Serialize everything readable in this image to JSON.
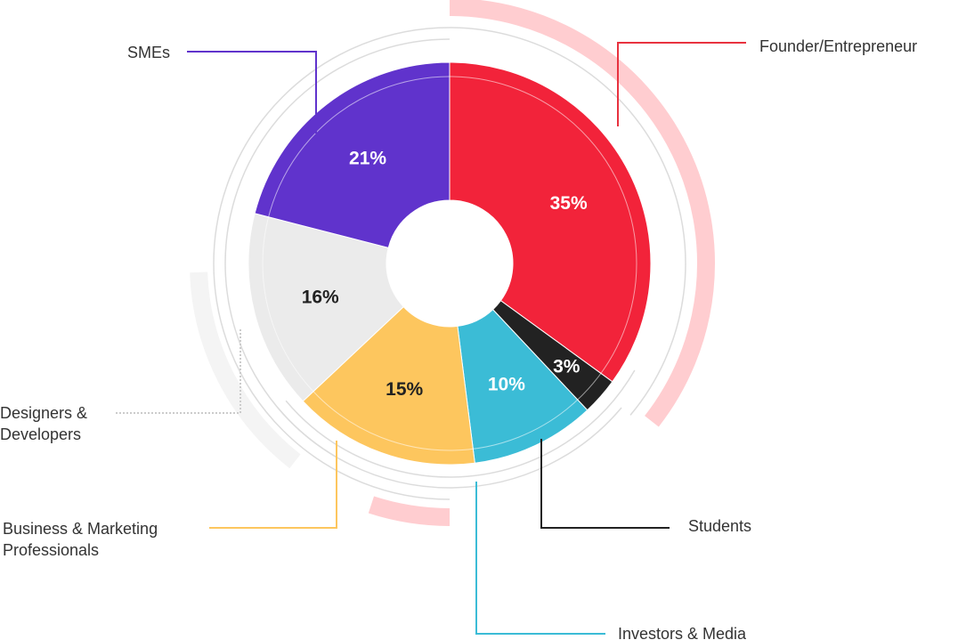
{
  "chart_data": {
    "type": "pie",
    "style": "donut",
    "slices": [
      {
        "label": "Founder/Entrepreneur",
        "value": 35,
        "display": "35%",
        "color": "#F2233A",
        "text_color": "#FFFFFF"
      },
      {
        "label": "Students",
        "value": 3,
        "display": "3%",
        "color": "#222222",
        "text_color": "#FFFFFF"
      },
      {
        "label": "Investors & Media",
        "value": 10,
        "display": "10%",
        "color": "#3BBCD6",
        "text_color": "#FFFFFF"
      },
      {
        "label": "Business & Marketing Professionals",
        "value": 15,
        "display": "15%",
        "color": "#FDC65E",
        "text_color": "#222222"
      },
      {
        "label": "Designers & Developers",
        "value": 16,
        "display": "16%",
        "color": "#EBEBEB",
        "text_color": "#222222"
      },
      {
        "label": "SMEs",
        "value": 21,
        "display": "21%",
        "color": "#6033CC",
        "text_color": "#FFFFFF"
      }
    ],
    "legend": {
      "founder": [
        "Founder/Entrepreneur"
      ],
      "students": [
        "Students"
      ],
      "investors": [
        "Investors & Media"
      ],
      "business": [
        "Business & Marketing",
        "Professionals"
      ],
      "designers": [
        "Designers &",
        "Developers"
      ],
      "smes": [
        "SMEs"
      ]
    },
    "callout_colors": {
      "founder": "#E8323F",
      "students": "#222222",
      "investors": "#3BBCD6",
      "business": "#FDC65E",
      "designers": "#CCCCCC",
      "smes": "#6033CC"
    },
    "decor_colors": {
      "ring_outline": "#DCDCDC",
      "arc_pink": "#FFCDD0",
      "arc_grey": "#F4F4F4"
    }
  }
}
